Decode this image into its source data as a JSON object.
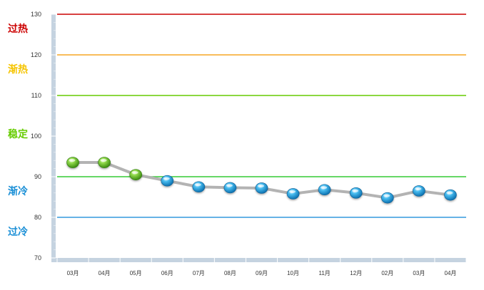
{
  "chart_data": {
    "type": "line",
    "categories": [
      "03月",
      "04月",
      "05月",
      "06月",
      "07月",
      "08月",
      "09月",
      "10月",
      "11月",
      "12月",
      "02月",
      "03月",
      "04月"
    ],
    "values": [
      93.5,
      93.5,
      90.5,
      89,
      87.5,
      87.3,
      87.2,
      85.8,
      86.8,
      86,
      84.8,
      86.5,
      85.5
    ],
    "point_status": [
      "stable",
      "stable",
      "stable",
      "cool",
      "cool",
      "cool",
      "cool",
      "cool",
      "cool",
      "cool",
      "cool",
      "cool",
      "cool"
    ],
    "ylim": [
      70,
      130
    ],
    "yticks": [
      70,
      80,
      90,
      100,
      110,
      120,
      130
    ],
    "grid": false,
    "reference_lines": [
      {
        "value": 130,
        "color": "#cc0000"
      },
      {
        "value": 120,
        "color": "#f5a623"
      },
      {
        "value": 110,
        "color": "#66cc00"
      },
      {
        "value": 90,
        "color": "#33cc33"
      },
      {
        "value": 80,
        "color": "#3399dd"
      }
    ],
    "zones": [
      {
        "label": "过热",
        "value": 126.5,
        "color": "#cc0000"
      },
      {
        "label": "渐热",
        "value": 116.5,
        "color": "#f5c400"
      },
      {
        "label": "稳定",
        "value": 100.5,
        "color": "#66cc00"
      },
      {
        "label": "渐冷",
        "value": 86.5,
        "color": "#1a8fd6"
      },
      {
        "label": "过冷",
        "value": 76.5,
        "color": "#1a8fd6"
      }
    ],
    "colors": {
      "line": "#b3b3b3",
      "axis_band": "#c5d3e0",
      "stable_marker": "#66bb22",
      "cool_marker": "#1a9ee0"
    }
  }
}
